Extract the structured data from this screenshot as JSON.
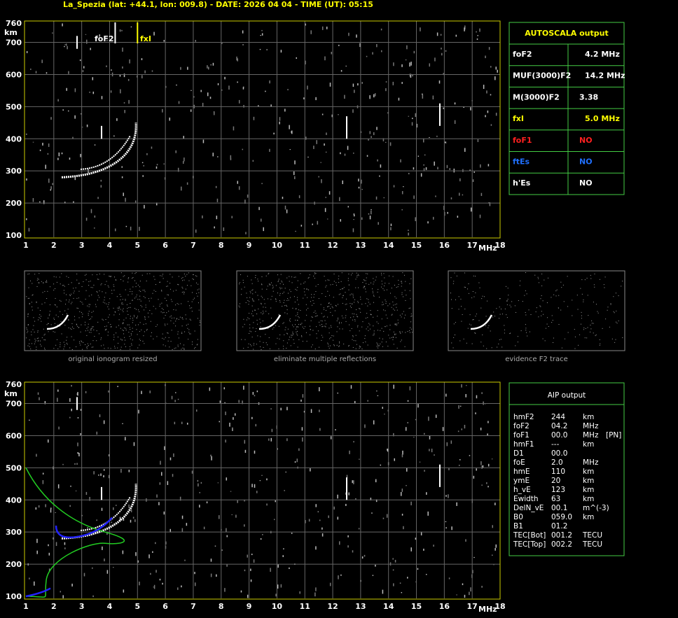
{
  "header": {
    "title": "La_Spezia (lat: +44.1, lon: 009.8) - DATE: 2026 04 04 - TIME (UT): 05:15"
  },
  "axes": {
    "height_unit": "km",
    "freq_unit": "MHz",
    "height_ticks": [
      100,
      200,
      300,
      400,
      500,
      600,
      700,
      760
    ],
    "freq_ticks": [
      1,
      2,
      3,
      4,
      5,
      6,
      7,
      8,
      9,
      10,
      11,
      12,
      13,
      14,
      15,
      16,
      17,
      18
    ]
  },
  "annotations": {
    "foF2": "foF2",
    "fxI": "fxI"
  },
  "thumbnails": [
    "original ionogram resized",
    "eliminate multiple reflections",
    "evidence F2 trace"
  ],
  "autoscala": {
    "title": "AUTOSCALA output",
    "rows": [
      {
        "label": "foF2",
        "value": "4.2 MHz",
        "color": "#ffffff",
        "value_color": "#ffffff"
      },
      {
        "label": "MUF(3000)F2",
        "value": "14.2 MHz",
        "color": "#ffffff",
        "value_color": "#ffffff"
      },
      {
        "label": "M(3000)F2",
        "value": "3.38",
        "color": "#ffffff",
        "value_color": "#ffffff"
      },
      {
        "label": "fxI",
        "value": "5.0 MHz",
        "color": "#ffff00",
        "value_color": "#ffff00"
      },
      {
        "label": "foF1",
        "value": "NO",
        "color": "#ff2020",
        "value_color": "#ff2020"
      },
      {
        "label": "ftEs",
        "value": "NO",
        "color": "#2070ff",
        "value_color": "#2070ff"
      },
      {
        "label": "h'Es",
        "value": "NO",
        "color": "#ffffff",
        "value_color": "#ffffff"
      }
    ]
  },
  "aip": {
    "title": "AIP output",
    "rows": [
      [
        "hmF2",
        "244",
        "km"
      ],
      [
        "foF2",
        "04.2",
        "MHz"
      ],
      [
        "foF1",
        "00.0",
        "MHz",
        "[PN]"
      ],
      [
        "hmF1",
        "---",
        "km"
      ],
      [
        "D1",
        "00.0"
      ],
      [
        "foE",
        "2.0",
        "MHz"
      ],
      [
        "hmE",
        "110",
        "km"
      ],
      [
        "ymE",
        "20",
        "km"
      ],
      [
        "h_vE",
        "123",
        "km"
      ],
      [
        "Ewidth",
        "63",
        "km"
      ],
      [
        "DelN_vE",
        "00.1",
        "m^(-3)"
      ],
      [
        "B0",
        "059.0",
        "km"
      ],
      [
        "B1",
        "01.2"
      ],
      [
        "TEC[Bot]",
        "001.2",
        "TECU"
      ],
      [
        "TEC[Top]",
        "002.2",
        "TECU"
      ]
    ]
  }
}
